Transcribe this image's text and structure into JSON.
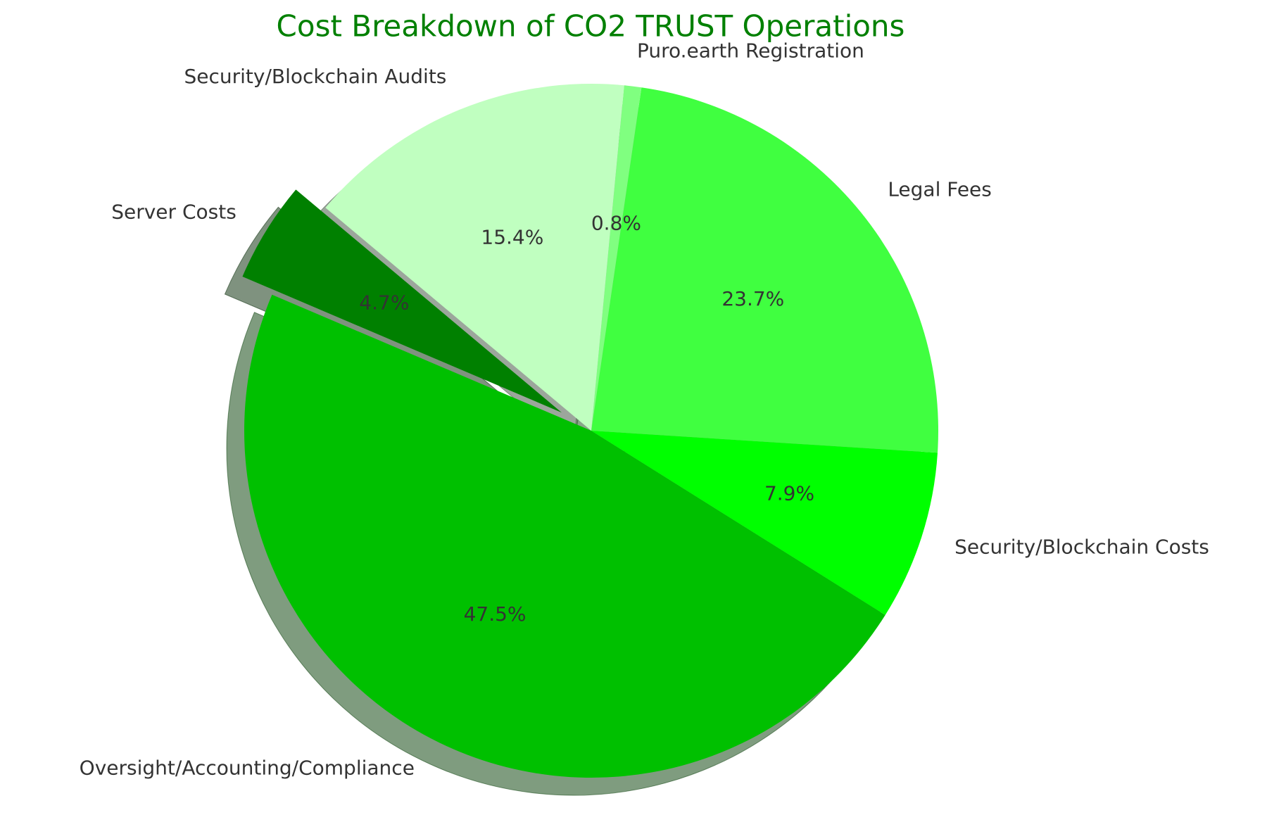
{
  "chart_data": {
    "type": "pie",
    "title": "Cost Breakdown of CO2 TRUST Operations",
    "categories": [
      "Server Costs",
      "Oversight/Accounting/Compliance",
      "Security/Blockchain Costs",
      "Legal Fees",
      "Puro.earth Registration",
      "Security/Blockchain Audits"
    ],
    "values": [
      4.7,
      47.5,
      7.9,
      23.7,
      0.8,
      15.4
    ],
    "value_labels": [
      "4.7%",
      "47.5%",
      "7.9%",
      "23.7%",
      "0.8%",
      "15.4%"
    ],
    "colors": [
      "#008000",
      "#00c000",
      "#00ff00",
      "#40ff40",
      "#80ff80",
      "#c0ffc0"
    ],
    "explode": [
      0.1,
      0,
      0,
      0,
      0,
      0
    ],
    "start_angle": 140,
    "shadow": true
  }
}
